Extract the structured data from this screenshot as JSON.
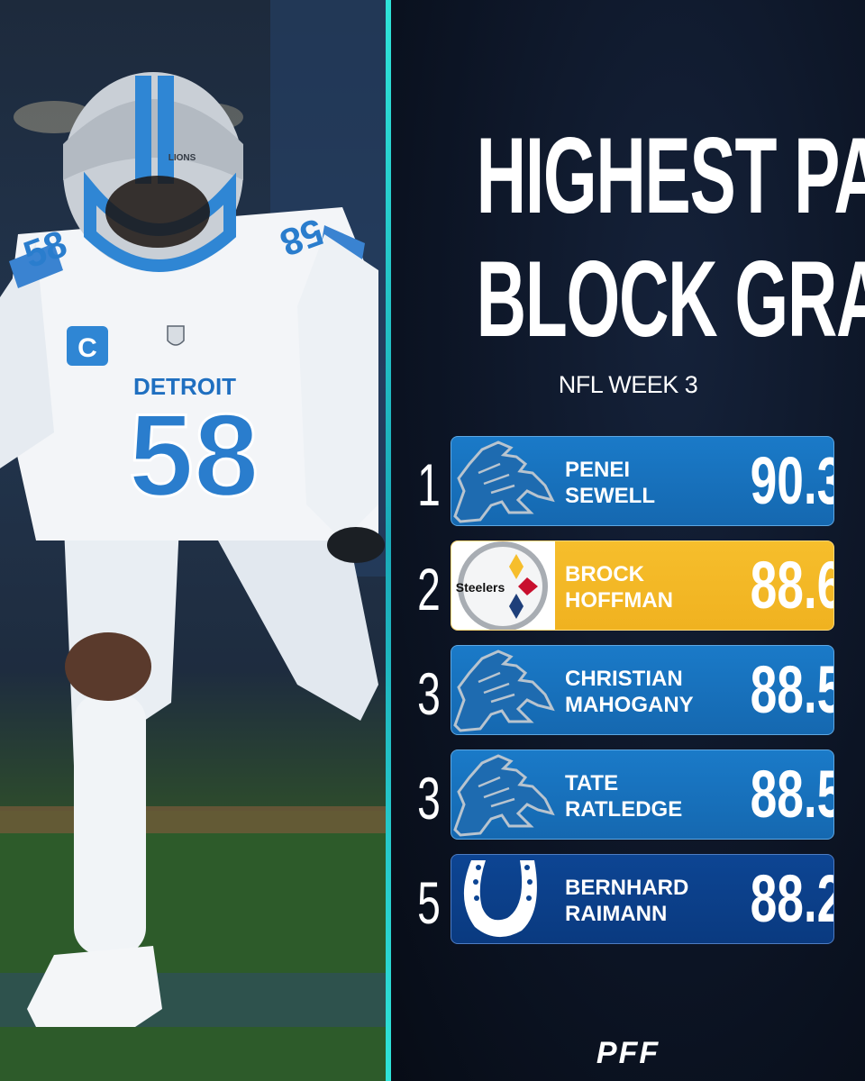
{
  "header": {
    "title_line1": "HIGHEST PASS",
    "title_line2": "BLOCK GRADE",
    "subtitle": "NFL WEEK 3"
  },
  "photo": {
    "jersey_text": "DETROIT",
    "jersey_number": "58",
    "helmet_text": "LIONS",
    "captain_patch": "C"
  },
  "rankings": [
    {
      "rank": "1",
      "first": "PENEI",
      "last": "SEWELL",
      "grade": "90.3",
      "team_logo": "lions-logo-icon",
      "color": "#1a7ac8"
    },
    {
      "rank": "2",
      "first": "BROCK",
      "last": "HOFFMAN",
      "grade": "88.6",
      "team_logo": "steelers-logo-icon",
      "logo_text": "Steelers",
      "color": "#f6be2c"
    },
    {
      "rank": "3",
      "first": "CHRISTIAN",
      "last": "MAHOGANY",
      "grade": "88.5",
      "team_logo": "lions-logo-icon",
      "color": "#1a7ac8"
    },
    {
      "rank": "3",
      "first": "TATE",
      "last": "RATLEDGE",
      "grade": "88.5",
      "team_logo": "lions-logo-icon",
      "color": "#1a7ac8"
    },
    {
      "rank": "5",
      "first": "BERNHARD",
      "last": "RAIMANN",
      "grade": "88.2",
      "team_logo": "colts-horseshoe-icon",
      "color": "#0d4593"
    }
  ],
  "brand": "PFF",
  "colors": {
    "accent_divider": "#2fe3d8",
    "lions_blue": "#1a7ac8",
    "steelers_gold": "#f6be2c",
    "colts_navy": "#0d4593",
    "background": "#0b1220"
  }
}
